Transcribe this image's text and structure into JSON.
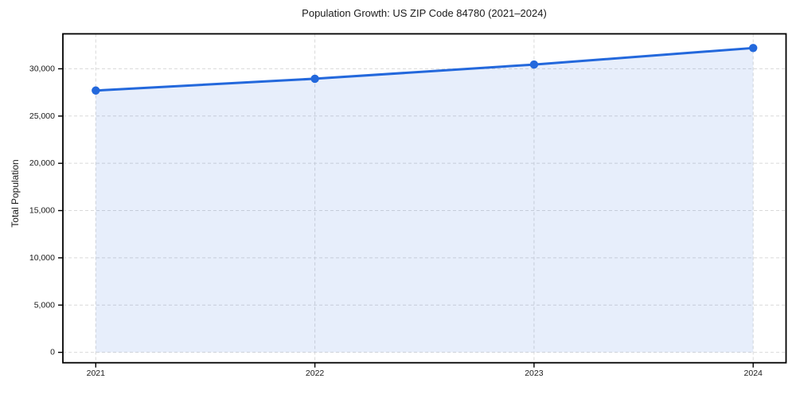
{
  "chart_data": {
    "type": "area",
    "title": "Population Growth: US ZIP Code 84780 (2021–2024)",
    "xlabel": "",
    "ylabel": "Total Population",
    "series": [
      {
        "name": "Total Population",
        "x": [
          2021,
          2022,
          2023,
          2024
        ],
        "values": [
          27700,
          28950,
          30450,
          32200
        ]
      }
    ],
    "xticks": {
      "values": [
        2021,
        2022,
        2023,
        2024
      ],
      "labels": [
        "2021",
        "2022",
        "2023",
        "2024"
      ]
    },
    "yticks": {
      "values": [
        0,
        5000,
        10000,
        15000,
        20000,
        25000,
        30000
      ],
      "labels": [
        "0",
        "5,000",
        "10,000",
        "15,000",
        "20,000",
        "25,000",
        "30,000"
      ]
    },
    "xlim": [
      2020.85,
      2024.15
    ],
    "ylim": [
      -1100,
      33700
    ],
    "fill_baseline": 0,
    "grid": {
      "show": true,
      "style": "dashed",
      "color": "#d9d9d9"
    },
    "legend": {
      "show": false
    },
    "colors": {
      "line": "#2368dc",
      "marker": "#2368dc",
      "fill": "rgba(35, 104, 220, 0.11)",
      "spine": "#000000",
      "tick": "#000000",
      "text": "#1a1a1a",
      "background": "#ffffff"
    }
  }
}
